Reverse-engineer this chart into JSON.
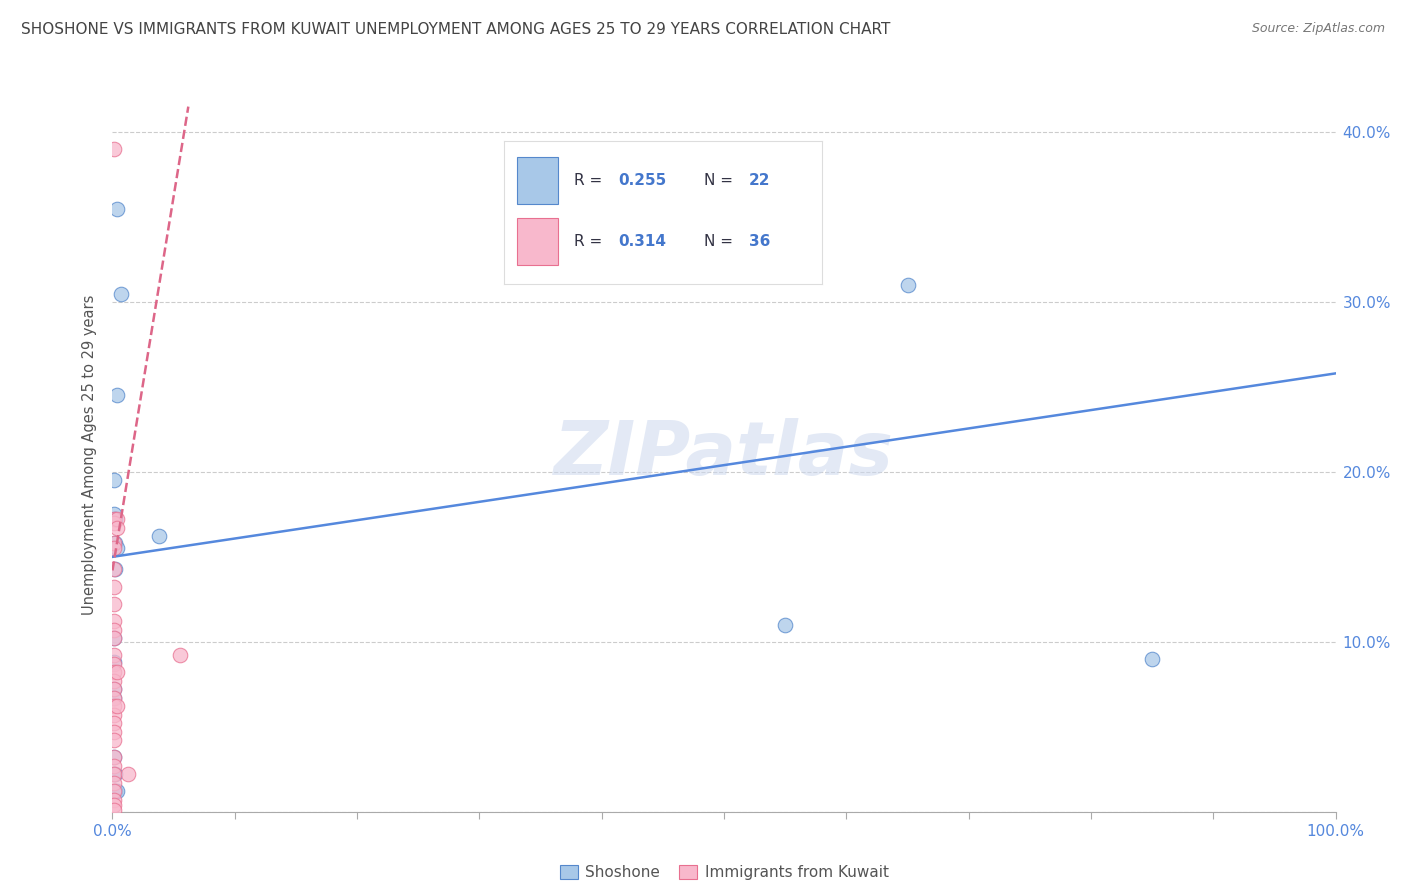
{
  "title": "SHOSHONE VS IMMIGRANTS FROM KUWAIT UNEMPLOYMENT AMONG AGES 25 TO 29 YEARS CORRELATION CHART",
  "source": "Source: ZipAtlas.com",
  "ylabel": "Unemployment Among Ages 25 to 29 years",
  "xlim": [
    0,
    1.0
  ],
  "ylim": [
    0,
    0.42
  ],
  "xticks": [
    0.0,
    0.1,
    0.2,
    0.3,
    0.4,
    0.5,
    0.6,
    0.7,
    0.8,
    0.9,
    1.0
  ],
  "xticklabels_shown": {
    "0.0": "0.0%",
    "1.0": "100.0%"
  },
  "yticks": [
    0.0,
    0.1,
    0.2,
    0.3,
    0.4
  ],
  "yticklabels": [
    "",
    "10.0%",
    "20.0%",
    "30.0%",
    "40.0%"
  ],
  "blue_fill": "#a8c8e8",
  "pink_fill": "#f8b8cc",
  "blue_edge": "#5588cc",
  "pink_edge": "#e87090",
  "line_blue": "#5588dd",
  "line_pink": "#dd6688",
  "text_blue": "#4477cc",
  "text_dark": "#333344",
  "tick_color": "#5588dd",
  "legend_r1": "R = 0.255",
  "legend_n1": "N = 22",
  "legend_r2": "R = 0.314",
  "legend_n2": "N = 36",
  "watermark": "ZIPatlas",
  "shoshone_x": [
    0.004,
    0.007,
    0.004,
    0.001,
    0.001,
    0.002,
    0.002,
    0.004,
    0.002,
    0.001,
    0.001,
    0.001,
    0.001,
    0.001,
    0.001,
    0.002,
    0.002,
    0.004,
    0.55,
    0.65,
    0.85,
    0.038
  ],
  "shoshone_y": [
    0.355,
    0.305,
    0.245,
    0.195,
    0.175,
    0.172,
    0.158,
    0.155,
    0.143,
    0.102,
    0.088,
    0.072,
    0.067,
    0.032,
    0.022,
    0.022,
    0.012,
    0.012,
    0.11,
    0.31,
    0.09,
    0.162
  ],
  "kuwait_x": [
    0.001,
    0.001,
    0.001,
    0.001,
    0.001,
    0.001,
    0.001,
    0.001,
    0.001,
    0.001,
    0.001,
    0.001,
    0.001,
    0.001,
    0.001,
    0.001,
    0.001,
    0.001,
    0.001,
    0.001,
    0.001,
    0.001,
    0.001,
    0.001,
    0.001,
    0.001,
    0.001,
    0.001,
    0.001,
    0.001,
    0.004,
    0.004,
    0.004,
    0.004,
    0.013,
    0.055
  ],
  "kuwait_y": [
    0.39,
    0.172,
    0.17,
    0.158,
    0.155,
    0.143,
    0.132,
    0.122,
    0.112,
    0.107,
    0.102,
    0.092,
    0.087,
    0.082,
    0.077,
    0.072,
    0.067,
    0.062,
    0.057,
    0.052,
    0.047,
    0.042,
    0.032,
    0.027,
    0.022,
    0.017,
    0.012,
    0.007,
    0.004,
    0.001,
    0.172,
    0.167,
    0.082,
    0.062,
    0.022,
    0.092
  ],
  "blue_trendline_x": [
    0.0,
    1.0
  ],
  "blue_trendline_y": [
    0.15,
    0.258
  ],
  "pink_trendline_x": [
    0.0,
    0.062
  ],
  "pink_trendline_y": [
    0.142,
    0.415
  ]
}
